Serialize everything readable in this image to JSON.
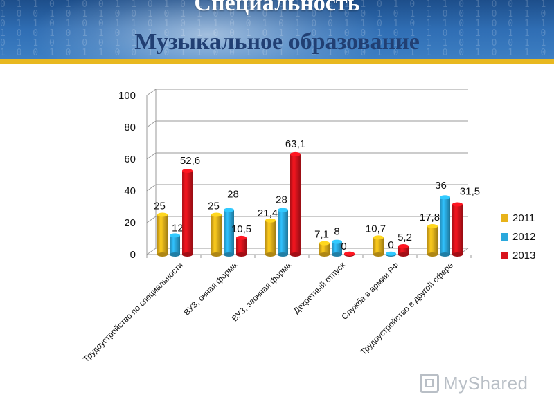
{
  "slide": {
    "title_line1": "Специальность",
    "title_line2": "Музыкальное образование"
  },
  "watermark": {
    "text": "MyShared",
    "icon": "myshared-logo-icon"
  },
  "colors": {
    "header_blue": "#2f6db3",
    "header_band": "#e8b820",
    "series_2011": "#e8b31a",
    "series_2012": "#2aa8dc",
    "series_2013": "#d8131c"
  },
  "chart_data": {
    "type": "bar",
    "title": "",
    "xlabel": "",
    "ylabel": "",
    "ylim": [
      0,
      100
    ],
    "yticks": [
      "0",
      "20",
      "40",
      "60",
      "80",
      "100"
    ],
    "grid": true,
    "legend_position": "right",
    "categories": [
      "Трудоустройство по специальности",
      "ВУЗ, очная форма",
      "ВУЗ, заочная форма",
      "Декретный отпуск",
      "Служба в армии РФ",
      "Трудоустройство в другой сфере"
    ],
    "series": [
      {
        "name": "2011",
        "color": "#e8b31a",
        "values": [
          25,
          25,
          21.4,
          7.1,
          10.7,
          17.8
        ],
        "labels": [
          "25",
          "25",
          "21,4",
          "7,1",
          "10,7",
          "17,8"
        ]
      },
      {
        "name": "2012",
        "color": "#2aa8dc",
        "values": [
          12,
          28,
          28,
          8,
          0,
          36
        ],
        "labels": [
          "12",
          "28",
          "28",
          "8",
          "0",
          "36"
        ]
      },
      {
        "name": "2013",
        "color": "#d8131c",
        "values": [
          52.6,
          10.5,
          63.1,
          0,
          5.2,
          31.5
        ],
        "labels": [
          "52,6",
          "10,5",
          "63,1",
          "0",
          "5,2",
          "31,5"
        ]
      }
    ]
  }
}
